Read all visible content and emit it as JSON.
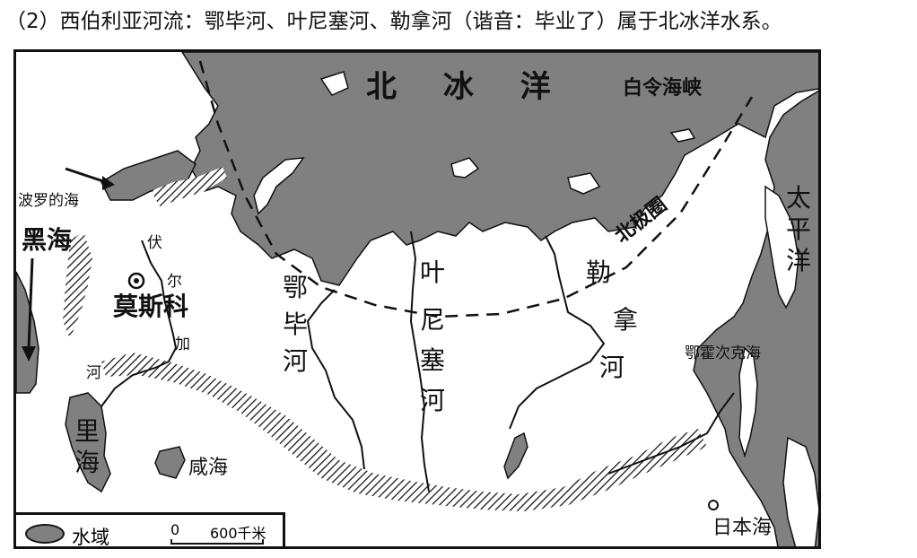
{
  "caption": "（2）西伯利亚河流：鄂毕河、叶尼塞河、勒拿河（谐音：毕业了）属于北冰洋水系。",
  "map": {
    "ocean_labels": {
      "arctic": "北 冰 洋",
      "bering": "白令海峡",
      "pacific": [
        "太",
        "平",
        "洋"
      ],
      "okhotsk": "鄂霍次克海",
      "japan_sea": "日本海",
      "baltic": "波罗的海",
      "black_sea": [
        "黑",
        "海"
      ],
      "caspian": [
        "里",
        "海"
      ],
      "aral": "咸海"
    },
    "rivers": {
      "volga": [
        "伏",
        "尔",
        "加",
        "河"
      ],
      "ob": [
        "鄂",
        "毕",
        "河"
      ],
      "yenisei": [
        "叶",
        "尼",
        "塞",
        "河"
      ],
      "lena": [
        "勒",
        "拿",
        "河"
      ]
    },
    "city": "莫斯科",
    "arctic_circle": "北极圈",
    "colors": {
      "water": "#808080",
      "land": "#ffffff",
      "lines": "#111111"
    }
  },
  "legend": {
    "water_label": "水域",
    "scale_zero": "0",
    "scale_value": "600千米"
  }
}
